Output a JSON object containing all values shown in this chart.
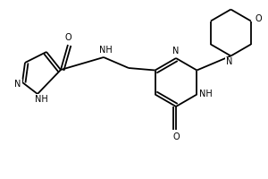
{
  "bg_color": "#ffffff",
  "line_color": "#000000",
  "line_width": 1.3,
  "font_size": 7.0,
  "xlim": [
    0,
    300
  ],
  "ylim": [
    0,
    200
  ]
}
